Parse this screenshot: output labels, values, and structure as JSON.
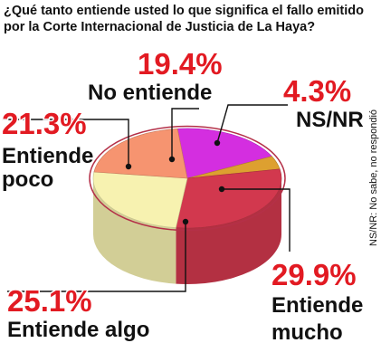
{
  "chart_data": {
    "type": "pie",
    "title_lines": [
      "¿Qué tanto entiende usted lo que significa el fallo emitido",
      "por la Corte Internacional de Justicia de La Haya?"
    ],
    "slices": [
      {
        "label_lines": [
          "No entiende"
        ],
        "pct_label": "19.4%",
        "value": 19.4,
        "color": "#d42ee0"
      },
      {
        "label_lines": [
          "NS/NR"
        ],
        "pct_label": "4.3%",
        "value": 4.3,
        "color": "#dda030"
      },
      {
        "label_lines": [
          "Entiende",
          "mucho"
        ],
        "pct_label": "29.9%",
        "value": 29.9,
        "color": "#d2384e"
      },
      {
        "label_lines": [
          "Entiende algo"
        ],
        "pct_label": "25.1%",
        "value": 25.1,
        "color": "#f7f2b0"
      },
      {
        "label_lines": [
          "Entiende",
          "poco"
        ],
        "pct_label": "21.3%",
        "value": 21.3,
        "color": "#f69470"
      }
    ],
    "footnote": "NS/NR: No sabe, no respondió"
  }
}
